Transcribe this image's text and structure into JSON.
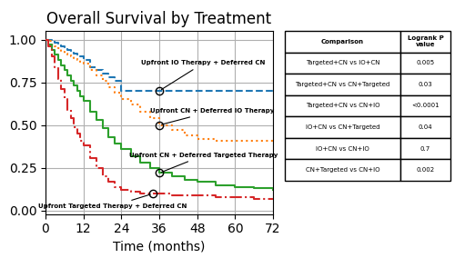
{
  "chart_data": {
    "type": "step",
    "title": "Overall Survival by Treatment",
    "xlabel": "Time (months)",
    "xlim": [
      0,
      72
    ],
    "ylim": [
      -0.02,
      1.05
    ],
    "xticks": [
      0,
      12,
      24,
      36,
      48,
      60,
      72
    ],
    "yticks": [
      {
        "value": 0.0,
        "label": "0.00"
      },
      0.25,
      {
        "value": 0.5,
        "label": "0.50"
      },
      0.75,
      {
        "value": 1.0,
        "label": "1.00"
      }
    ],
    "grid": true,
    "series": [
      {
        "name": "Upfront IO Therapy + Deferred CN",
        "line_style": "dashed",
        "x": [
          0,
          1,
          2,
          3,
          4,
          5,
          6,
          7,
          8,
          9,
          10,
          11,
          12,
          14,
          16,
          18,
          20,
          22,
          24,
          28,
          32,
          36,
          40,
          44,
          48,
          54,
          60,
          66,
          72
        ],
        "values": [
          1.0,
          1.0,
          0.99,
          0.98,
          0.97,
          0.96,
          0.95,
          0.94,
          0.93,
          0.92,
          0.91,
          0.9,
          0.88,
          0.84,
          0.82,
          0.8,
          0.78,
          0.76,
          0.7,
          0.7,
          0.7,
          0.7,
          0.7,
          0.7,
          0.7,
          0.7,
          0.7,
          0.7,
          0.7
        ]
      },
      {
        "name": "Upfront CN + Deferred IO Therapy",
        "line_style": "dotted",
        "x": [
          0,
          1,
          2,
          3,
          4,
          5,
          6,
          7,
          8,
          9,
          10,
          11,
          12,
          14,
          16,
          18,
          20,
          22,
          24,
          27,
          30,
          33,
          36,
          40,
          44,
          48,
          54,
          60,
          66,
          72
        ],
        "values": [
          1.0,
          0.99,
          0.97,
          0.96,
          0.95,
          0.93,
          0.92,
          0.91,
          0.9,
          0.89,
          0.88,
          0.87,
          0.86,
          0.82,
          0.79,
          0.76,
          0.72,
          0.69,
          0.65,
          0.62,
          0.58,
          0.54,
          0.5,
          0.47,
          0.44,
          0.42,
          0.41,
          0.41,
          0.41,
          0.41
        ]
      },
      {
        "name": "Upfront CN + Deferred Targeted Therapy",
        "line_style": "solid",
        "x": [
          0,
          1,
          2,
          3,
          4,
          5,
          6,
          7,
          8,
          9,
          10,
          11,
          12,
          14,
          16,
          18,
          20,
          22,
          24,
          27,
          30,
          33,
          36,
          40,
          44,
          48,
          54,
          60,
          66,
          72
        ],
        "values": [
          1.0,
          0.97,
          0.94,
          0.91,
          0.88,
          0.85,
          0.82,
          0.79,
          0.76,
          0.73,
          0.7,
          0.67,
          0.64,
          0.58,
          0.53,
          0.48,
          0.43,
          0.39,
          0.36,
          0.32,
          0.28,
          0.25,
          0.22,
          0.2,
          0.18,
          0.17,
          0.15,
          0.14,
          0.13,
          0.12
        ]
      },
      {
        "name": "Upfront Targeted Therapy + Deferred CN",
        "line_style": "dashdot",
        "x": [
          0,
          1,
          2,
          3,
          4,
          5,
          6,
          7,
          8,
          9,
          10,
          11,
          12,
          14,
          16,
          18,
          20,
          22,
          24,
          27,
          30,
          33,
          36,
          40,
          44,
          48,
          54,
          60,
          66,
          72
        ],
        "values": [
          1.0,
          0.96,
          0.9,
          0.84,
          0.77,
          0.71,
          0.65,
          0.59,
          0.54,
          0.49,
          0.45,
          0.41,
          0.38,
          0.31,
          0.25,
          0.2,
          0.17,
          0.14,
          0.12,
          0.11,
          0.1,
          0.1,
          0.1,
          0.09,
          0.09,
          0.09,
          0.08,
          0.08,
          0.07,
          0.07
        ]
      }
    ],
    "annotations": [
      {
        "text": "Upfront IO Therapy + Deferred CN",
        "x": 36,
        "y": 0.7
      },
      {
        "text": "Upfront CN + Deferred IO Therapy",
        "x": 36,
        "y": 0.5
      },
      {
        "text": "Upfront CN + Deferred Targeted Therapy",
        "x": 36,
        "y": 0.22
      },
      {
        "text": "Upfront Targeted Therapy + Deferred CN",
        "x": 34,
        "y": 0.1
      }
    ],
    "table": {
      "header": [
        "Comparison",
        "Logrank P\nvalue"
      ],
      "rows": [
        [
          "Targeted+CN vs IO+CN",
          "0.005"
        ],
        [
          "Targeted+CN vs CN+Targeted",
          "0.03"
        ],
        [
          "Targeted+CN vs CN+IO",
          "<0.0001"
        ],
        [
          "IO+CN vs CN+Targeted",
          "0.04"
        ],
        [
          "IO+CN vs CN+IO",
          "0.7"
        ],
        [
          "CN+Targeted vs CN+IO",
          "0.002"
        ]
      ]
    }
  }
}
